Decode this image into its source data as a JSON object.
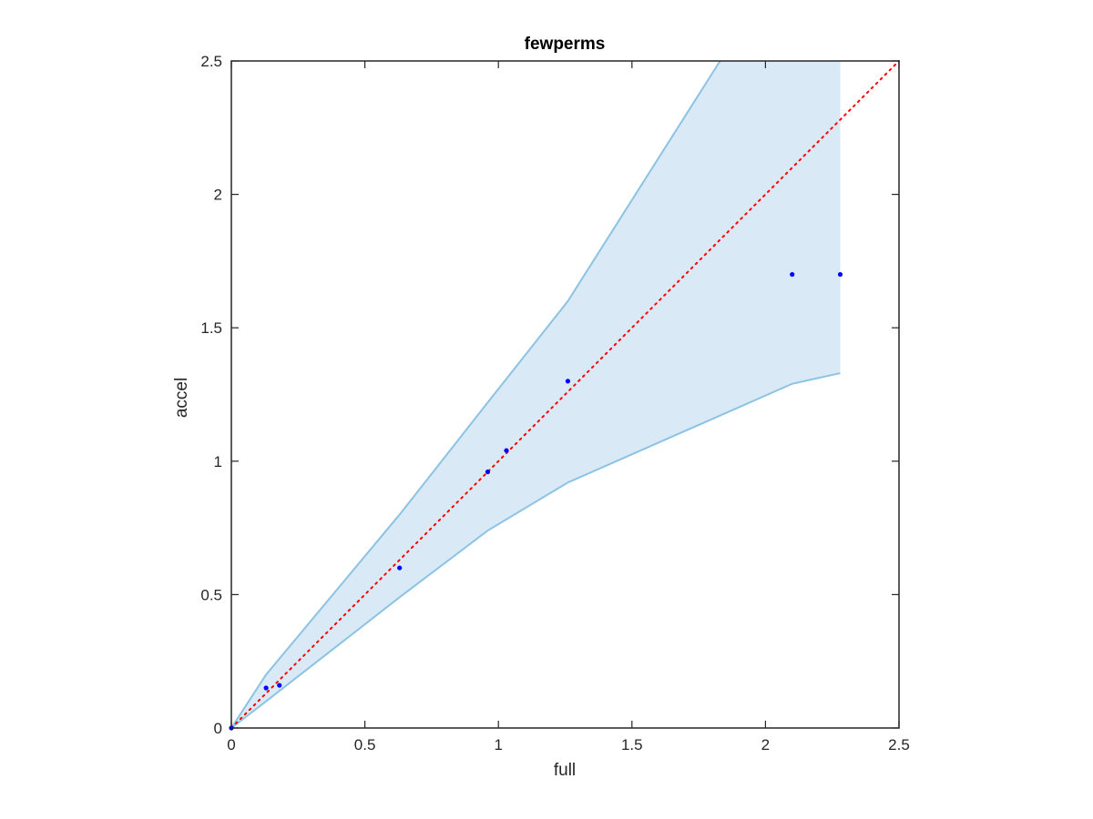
{
  "chart_data": {
    "type": "scatter",
    "title": "fewperms",
    "xlabel": "full",
    "ylabel": "accel",
    "xlim": [
      0,
      2.5
    ],
    "ylim": [
      0,
      2.5
    ],
    "xticks": [
      0,
      0.5,
      1,
      1.5,
      2,
      2.5
    ],
    "yticks": [
      0,
      0.5,
      1,
      1.5,
      2,
      2.5
    ],
    "xtick_labels": [
      "0",
      "0.5",
      "1",
      "1.5",
      "2",
      "2.5"
    ],
    "ytick_labels": [
      "0",
      "0.5",
      "1",
      "1.5",
      "2",
      "2.5"
    ],
    "grid": false,
    "points": {
      "x": [
        0.0,
        0.13,
        0.18,
        0.63,
        0.96,
        1.03,
        1.26,
        2.1,
        2.28
      ],
      "y": [
        0.0,
        0.15,
        0.16,
        0.6,
        0.96,
        1.04,
        1.3,
        1.7,
        1.7
      ],
      "color": "#0000ff"
    },
    "band": {
      "upper": [
        [
          0.0,
          0.0
        ],
        [
          0.13,
          0.2
        ],
        [
          0.63,
          0.8
        ],
        [
          0.96,
          1.22
        ],
        [
          1.26,
          1.6
        ],
        [
          1.83,
          2.5
        ],
        [
          2.28,
          2.5
        ]
      ],
      "lower": [
        [
          0.0,
          0.0
        ],
        [
          0.13,
          0.1
        ],
        [
          0.63,
          0.49
        ],
        [
          0.96,
          0.74
        ],
        [
          1.26,
          0.92
        ],
        [
          2.1,
          1.29
        ],
        [
          2.28,
          1.33
        ]
      ],
      "fill_color": "#d9e9f5",
      "edge_color": "#8cc3e4"
    },
    "reference_line": {
      "x": [
        0,
        2.5
      ],
      "y": [
        0,
        2.5
      ],
      "color": "#ff0000",
      "style": "dotted"
    }
  }
}
